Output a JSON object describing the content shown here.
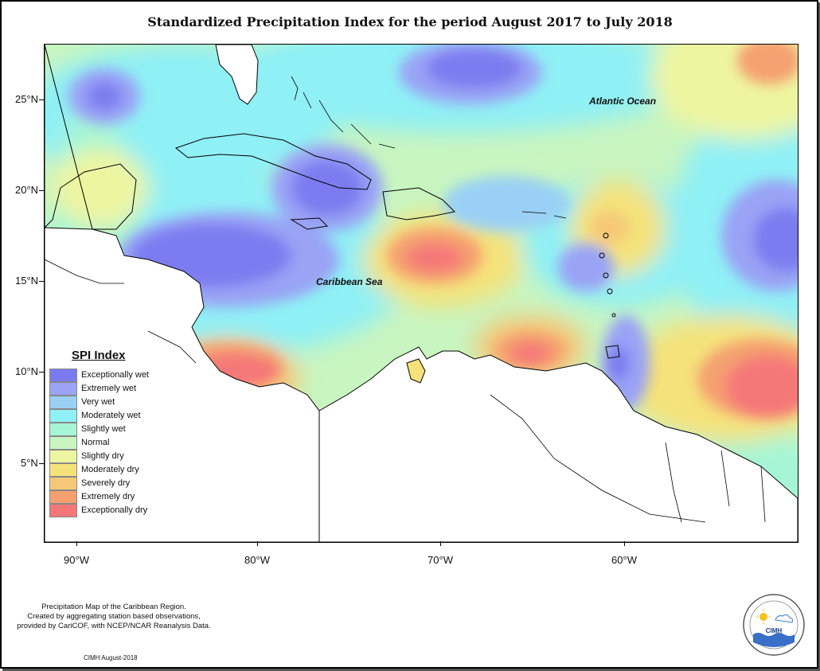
{
  "title": "Standardized Precipitation Index for the period August 2017 to July 2018",
  "map": {
    "latitude_labels": [
      "25°N",
      "20°N",
      "15°N",
      "10°N",
      "5°N"
    ],
    "longitude_labels": [
      "90°W",
      "80°W",
      "70°W",
      "60°W"
    ],
    "region_labels": {
      "atlantic": "Atlantic Ocean",
      "caribbean": "Caribbean Sea"
    }
  },
  "legend": {
    "title": "SPI Index",
    "items": [
      {
        "label": "Exceptionally wet",
        "color": "#7b7bf0"
      },
      {
        "label": "Extremely wet",
        "color": "#9aa3f5"
      },
      {
        "label": "Very wet",
        "color": "#9ad0f5"
      },
      {
        "label": "Moderately wet",
        "color": "#8ff0f5"
      },
      {
        "label": "Slightly wet",
        "color": "#a6f5d6"
      },
      {
        "label": "Normal",
        "color": "#c8f5c0"
      },
      {
        "label": "Slightly dry",
        "color": "#eef5a0"
      },
      {
        "label": "Moderately dry",
        "color": "#f5e27a"
      },
      {
        "label": "Severely dry",
        "color": "#f5c878"
      },
      {
        "label": "Extremely dry",
        "color": "#f5a070"
      },
      {
        "label": "Exceptionally dry",
        "color": "#f57878"
      }
    ]
  },
  "footer": {
    "note_lines": [
      "Precipitation Map of the Caribbean Region.",
      "Created by aggregating station based observations,",
      "provided by CariCOF, with NCEP/NCAR Reanalysis Data."
    ],
    "credit": "CIMH August-2018",
    "logo_text": "CIMH"
  }
}
